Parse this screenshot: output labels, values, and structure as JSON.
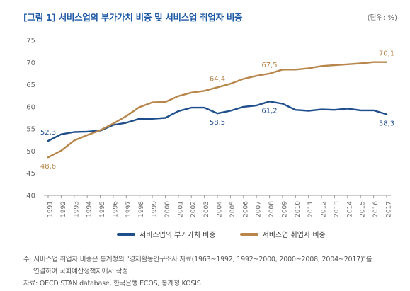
{
  "header": {
    "title": "[그림 1] 서비스업의 부가가치 비중 및 서비스업 취업자 비중",
    "unit": "(단위: %)"
  },
  "colors": {
    "title": "#1f5aa6",
    "series_value_added": "#1f4e8c",
    "series_employment": "#b8864a",
    "axis": "#999999"
  },
  "chart_data": {
    "type": "line",
    "title": "[그림 1] 서비스업의 부가가치 비중 및 서비스업 취업자 비중",
    "xlabel": "",
    "ylabel": "",
    "ylim": [
      40,
      75
    ],
    "yticks": [
      40,
      45,
      50,
      55,
      60,
      65,
      70,
      75
    ],
    "grid": false,
    "legend_position": "bottom",
    "categories": [
      "1991",
      "1992",
      "1993",
      "1994",
      "1995",
      "1996",
      "1997",
      "1998",
      "1999",
      "2000",
      "2001",
      "2002",
      "2003",
      "2004",
      "2005",
      "2006",
      "2007",
      "2008",
      "2009",
      "2010",
      "2011",
      "2012",
      "2013",
      "2014",
      "2015",
      "2016",
      "2017"
    ],
    "series": [
      {
        "name": "서비스업의 부가가치 비중",
        "color": "#1f4e8c",
        "values": [
          52.3,
          53.8,
          54.3,
          54.4,
          54.6,
          55.9,
          56.4,
          57.3,
          57.3,
          57.5,
          59.0,
          59.8,
          59.8,
          58.5,
          59.1,
          60.0,
          60.3,
          61.2,
          60.7,
          59.3,
          59.1,
          59.4,
          59.3,
          59.6,
          59.2,
          59.2,
          58.3
        ]
      },
      {
        "name": "서비스업 취업자 비중",
        "color": "#b8864a",
        "values": [
          48.6,
          50.1,
          52.4,
          53.6,
          54.7,
          56.2,
          57.9,
          59.9,
          61.0,
          61.1,
          62.4,
          63.2,
          63.6,
          64.4,
          65.2,
          66.3,
          67.0,
          67.5,
          68.4,
          68.4,
          68.7,
          69.2,
          69.4,
          69.6,
          69.8,
          70.1,
          70.1
        ]
      }
    ],
    "data_labels": [
      {
        "series": 0,
        "index": 0,
        "text": "52,3",
        "pos": "above"
      },
      {
        "series": 0,
        "index": 13,
        "text": "58,5",
        "pos": "below"
      },
      {
        "series": 0,
        "index": 17,
        "text": "61,2",
        "pos": "below"
      },
      {
        "series": 0,
        "index": 26,
        "text": "58,3",
        "pos": "below"
      },
      {
        "series": 1,
        "index": 0,
        "text": "48,6",
        "pos": "below"
      },
      {
        "series": 1,
        "index": 13,
        "text": "64,4",
        "pos": "above"
      },
      {
        "series": 1,
        "index": 17,
        "text": "67,5",
        "pos": "above"
      },
      {
        "series": 1,
        "index": 26,
        "text": "70,1",
        "pos": "above"
      }
    ]
  },
  "legend": {
    "items": [
      {
        "label": "서비스업의 부가가치 비중"
      },
      {
        "label": "서비스업 취업자 비중"
      }
    ]
  },
  "footer": {
    "note_line1": "주: 서비스업 취업자 비중은 통계청의 \"경제활동인구조사 자료(1963~1992, 1992~2000, 2000~2008, 2004~2017)\"를",
    "note_line2": "연결하여 국회예산정책처에서 작성",
    "source": "자료: OECD STAN database, 한국은행 ECOS, 통계청 KOSIS"
  }
}
